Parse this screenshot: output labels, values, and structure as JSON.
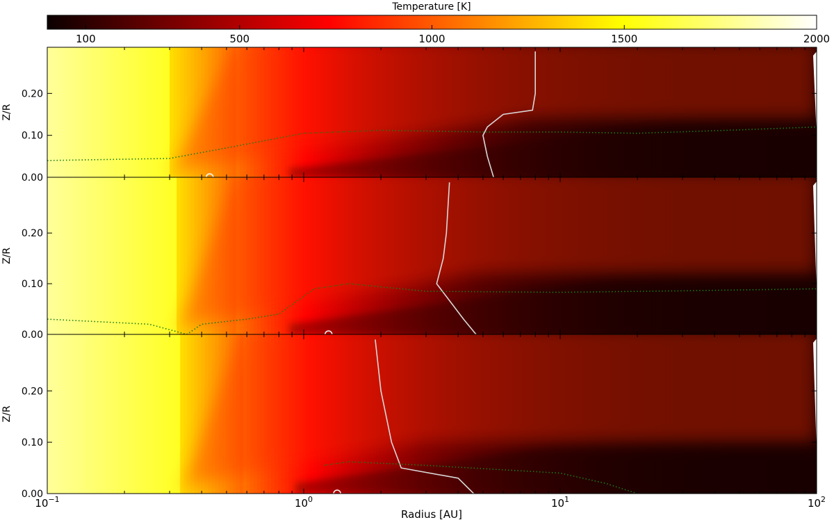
{
  "chart_data": {
    "type": "heatmap",
    "colorbar": {
      "label": "Temperature [K]",
      "range": [
        0,
        2000
      ],
      "ticks": [
        100,
        500,
        1000,
        1500,
        2000
      ],
      "tick_labels": [
        "100",
        "500",
        "1000",
        "1500",
        "2000"
      ],
      "placement": "top",
      "colormap": "hot"
    },
    "x_axis": {
      "label": "Radius [AU]",
      "scale": "log",
      "range": [
        0.1,
        100
      ],
      "ticks": [
        0.1,
        1,
        10,
        100
      ],
      "tick_labels": [
        {
          "base": "10",
          "exp": "−1"
        },
        {
          "base": "10",
          "exp": "0"
        },
        {
          "base": "10",
          "exp": "1"
        },
        {
          "base": "10",
          "exp": "2"
        }
      ]
    },
    "y_axis": {
      "label": "Z/R",
      "range": [
        0,
        0.3
      ],
      "ticks": [
        0,
        0.1,
        0.2
      ],
      "tick_labels": [
        "0.00",
        "0.10",
        "0.20"
      ]
    },
    "panels": [
      {
        "inner_edge_r": 0.3,
        "plateau_edge_r": 0.55,
        "hot_surface_slope_z": 0.14,
        "white_contour": [
          [
            0.0,
            5.5
          ],
          [
            0.05,
            5.2
          ],
          [
            0.1,
            5.0
          ],
          [
            0.12,
            5.2
          ],
          [
            0.15,
            6.0
          ],
          [
            0.16,
            7.8
          ],
          [
            0.2,
            8.0
          ],
          [
            0.3,
            8.0
          ]
        ],
        "green_dotted": [
          [
            0.1,
            0.04
          ],
          [
            0.3,
            0.045
          ],
          [
            0.5,
            0.07
          ],
          [
            1.0,
            0.105
          ],
          [
            2.0,
            0.112
          ],
          [
            5.0,
            0.108
          ],
          [
            10.0,
            0.108
          ],
          [
            20.0,
            0.105
          ],
          [
            50.0,
            0.113
          ],
          [
            100.0,
            0.12
          ]
        ],
        "circle_marker": [
          0.43,
          0.0
        ]
      },
      {
        "inner_edge_r": 0.32,
        "plateau_edge_r": 0.55,
        "hot_surface_slope_z": 0.12,
        "white_contour": [
          [
            0.0,
            4.7
          ],
          [
            0.03,
            4.2
          ],
          [
            0.1,
            3.3
          ],
          [
            0.15,
            3.5
          ],
          [
            0.2,
            3.6
          ],
          [
            0.3,
            3.7
          ]
        ],
        "green_dotted": [
          [
            0.1,
            0.03
          ],
          [
            0.25,
            0.02
          ],
          [
            0.35,
            0.0
          ],
          [
            0.4,
            0.02
          ],
          [
            0.6,
            0.03
          ],
          [
            0.8,
            0.04
          ],
          [
            1.1,
            0.09
          ],
          [
            1.5,
            0.1
          ],
          [
            3.0,
            0.085
          ],
          [
            10.0,
            0.083
          ],
          [
            30.0,
            0.086
          ],
          [
            100.0,
            0.09
          ]
        ],
        "circle_marker": [
          1.25,
          0.0
        ]
      },
      {
        "inner_edge_r": 0.33,
        "plateau_edge_r": 0.58,
        "hot_surface_slope_z": 0.1,
        "white_contour": [
          [
            0.0,
            4.6
          ],
          [
            0.03,
            4.0
          ],
          [
            0.05,
            2.4
          ],
          [
            0.1,
            2.2
          ],
          [
            0.2,
            2.0
          ],
          [
            0.3,
            1.9
          ]
        ],
        "green_dotted": [
          [
            1.2,
            0.055
          ],
          [
            1.5,
            0.062
          ],
          [
            3.0,
            0.055
          ],
          [
            10.0,
            0.04
          ],
          [
            15.0,
            0.02
          ],
          [
            20.0,
            0.0
          ]
        ],
        "circle_marker": [
          1.35,
          0.0
        ]
      }
    ]
  }
}
